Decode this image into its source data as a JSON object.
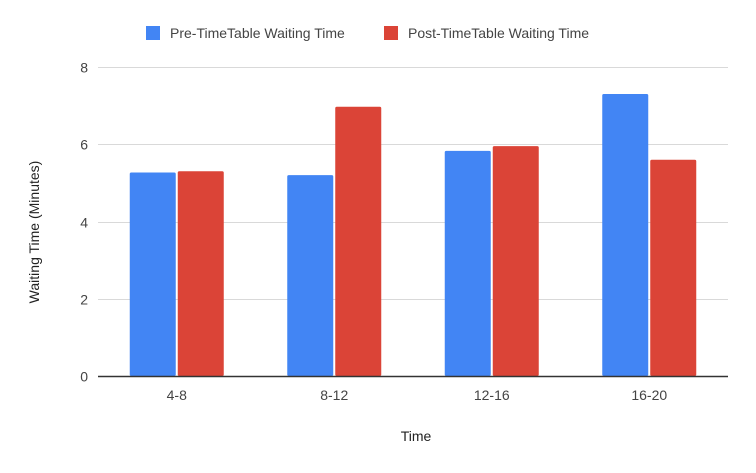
{
  "chart_data": {
    "type": "bar",
    "title": "",
    "xlabel": "Time",
    "ylabel": "Waiting Time  (Minutes)",
    "categories": [
      "4-8",
      "8-12",
      "12-16",
      "16-20"
    ],
    "series": [
      {
        "name": "Pre-TimeTable Waiting Time",
        "color": "#4285F4",
        "values": [
          5.27,
          5.2,
          5.83,
          7.3
        ]
      },
      {
        "name": "Post-TimeTable Waiting Time",
        "color": "#DB4437",
        "values": [
          5.3,
          6.97,
          5.95,
          5.6
        ]
      }
    ],
    "ylim": [
      0,
      8
    ],
    "yticks": [
      "0",
      "2",
      "4",
      "6",
      "8"
    ],
    "grid": true,
    "legend_position": "top"
  }
}
